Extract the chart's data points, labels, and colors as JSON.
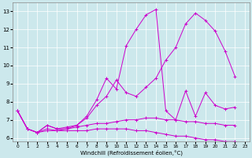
{
  "xlabel": "Windchill (Refroidissement éolien,°C)",
  "x_ticks": [
    0,
    1,
    2,
    3,
    4,
    5,
    6,
    7,
    8,
    9,
    10,
    11,
    12,
    13,
    14,
    15,
    16,
    17,
    18,
    19,
    20,
    21,
    22,
    23
  ],
  "ylim": [
    5.8,
    13.5
  ],
  "xlim": [
    -0.5,
    23.5
  ],
  "yticks": [
    6,
    7,
    8,
    9,
    10,
    11,
    12,
    13
  ],
  "background_color": "#cce8ec",
  "line_color": "#cc00cc",
  "lines": [
    {
      "x": [
        0,
        1,
        2,
        3,
        4,
        5,
        6,
        7,
        8,
        9,
        10,
        11,
        12,
        13,
        14,
        15,
        16,
        17,
        18,
        19,
        20,
        21,
        22
      ],
      "y": [
        7.5,
        6.5,
        6.3,
        6.7,
        6.5,
        6.6,
        6.7,
        7.2,
        8.1,
        9.3,
        8.7,
        11.1,
        12.0,
        12.8,
        13.1,
        7.5,
        7.0,
        8.6,
        7.2,
        8.5,
        7.8,
        7.6,
        7.7
      ]
    },
    {
      "x": [
        0,
        1,
        2,
        3,
        4,
        5,
        6,
        7,
        8,
        9,
        10,
        11,
        12,
        13,
        14,
        15,
        16,
        17,
        18,
        19,
        20,
        21,
        22
      ],
      "y": [
        7.5,
        6.5,
        6.3,
        6.7,
        6.5,
        6.5,
        6.7,
        7.1,
        7.8,
        8.3,
        9.2,
        8.5,
        8.3,
        8.8,
        9.3,
        10.3,
        11.0,
        12.3,
        12.9,
        12.5,
        11.9,
        10.8,
        9.4
      ]
    },
    {
      "x": [
        0,
        1,
        2,
        3,
        4,
        5,
        6,
        7,
        8,
        9,
        10,
        11,
        12,
        13,
        14,
        15,
        16,
        17,
        18,
        19,
        20,
        21,
        22
      ],
      "y": [
        7.5,
        6.5,
        6.3,
        6.5,
        6.4,
        6.5,
        6.6,
        6.7,
        6.8,
        6.8,
        6.9,
        7.0,
        7.0,
        7.1,
        7.1,
        7.0,
        7.0,
        6.9,
        6.9,
        6.8,
        6.8,
        6.7,
        6.7
      ]
    },
    {
      "x": [
        0,
        1,
        2,
        3,
        4,
        5,
        6,
        7,
        8,
        9,
        10,
        11,
        12,
        13,
        14,
        15,
        16,
        17,
        18,
        19,
        20,
        21,
        22
      ],
      "y": [
        7.5,
        6.5,
        6.3,
        6.4,
        6.4,
        6.4,
        6.4,
        6.4,
        6.5,
        6.5,
        6.5,
        6.5,
        6.4,
        6.4,
        6.3,
        6.2,
        6.1,
        6.1,
        6.0,
        5.9,
        5.9,
        5.8,
        5.8
      ]
    }
  ]
}
